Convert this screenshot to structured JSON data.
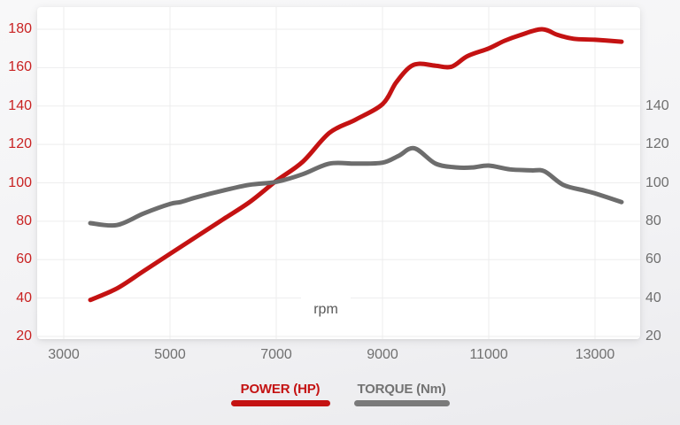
{
  "chart_data": {
    "type": "line",
    "title": "",
    "x_axis": {
      "label": "rpm",
      "ticks": [
        3000,
        5000,
        7000,
        9000,
        11000,
        13000
      ],
      "range": [
        2500,
        13850
      ],
      "grid": true
    },
    "y_axis_left": {
      "name": "Power (HP)",
      "ticks": [
        20,
        40,
        60,
        80,
        100,
        120,
        140,
        160,
        180
      ],
      "range": [
        16,
        191
      ],
      "text_color": "#c92222",
      "grid": true
    },
    "y_axis_right": {
      "name": "Torque (Nm)",
      "ticks": [
        20,
        40,
        60,
        80,
        100,
        120,
        140
      ],
      "range": [
        16,
        191
      ],
      "text_color": "#6f6f6f"
    },
    "legend_position": "bottom",
    "grid": true,
    "series": [
      {
        "name": "POWER (HP)",
        "color": "#c41212",
        "x": [
          3500,
          4000,
          4500,
          5000,
          5500,
          6000,
          6500,
          7000,
          7500,
          8000,
          8500,
          9000,
          9250,
          9500,
          9700,
          10000,
          10300,
          10600,
          11000,
          11300,
          11600,
          12000,
          12300,
          12600,
          13000,
          13500
        ],
        "y": [
          39,
          45,
          54,
          63,
          72,
          81,
          90,
          101,
          111,
          126,
          133,
          141,
          152,
          160,
          162,
          161,
          160.5,
          166,
          170,
          174,
          177,
          180,
          177,
          175,
          174.5,
          173.5
        ]
      },
      {
        "name": "TORQUE (Nm)",
        "color": "#6d6d6d",
        "x": [
          3500,
          4000,
          4500,
          5000,
          5200,
          5500,
          6000,
          6500,
          7000,
          7500,
          8000,
          8500,
          9000,
          9300,
          9600,
          10000,
          10400,
          10700,
          11000,
          11400,
          11800,
          12050,
          12400,
          12800,
          13000,
          13500
        ],
        "y": [
          79,
          78,
          84,
          89,
          90,
          92.5,
          96,
          99,
          100.5,
          104.5,
          110,
          110,
          110.5,
          114,
          118,
          110,
          108,
          108,
          109,
          107,
          106.5,
          106,
          99,
          96,
          94.5,
          90
        ]
      }
    ],
    "colors": {
      "grid": "#ededee",
      "x_tick_text": "#707070",
      "rpm_label_text": "#585858",
      "card_background": "#ffffff",
      "page_background": "#f3f3f5"
    }
  },
  "legend": {
    "power_label": "POWER (HP)",
    "torque_label": "TORQUE (Nm)"
  },
  "rpm_label": "rpm"
}
